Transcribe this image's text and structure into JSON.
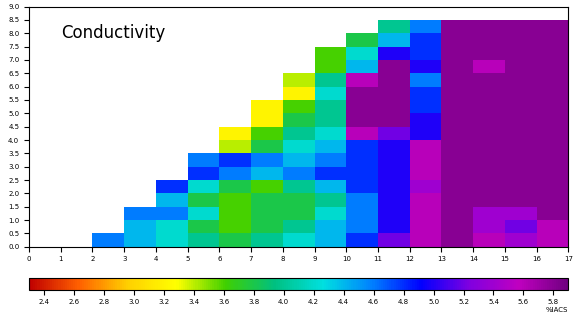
{
  "chart_data": {
    "type": "heatmap",
    "title": "Conductivity",
    "x_edges": [
      0,
      1,
      2,
      3,
      4,
      5,
      6,
      7,
      8,
      9,
      10,
      11,
      12,
      13,
      14,
      15,
      16,
      17
    ],
    "y_edges": [
      0.0,
      0.5,
      1.0,
      1.5,
      2.0,
      2.5,
      3.0,
      3.5,
      4.0,
      4.5,
      5.0,
      5.5,
      6.0,
      6.5,
      7.0,
      7.5,
      8.0,
      8.5
    ],
    "cells": [
      [
        null,
        null,
        4.6,
        4.4,
        4.2,
        4.0,
        3.8,
        4.0,
        4.2,
        4.4,
        4.8,
        5.2,
        5.6,
        5.8,
        5.6,
        5.4,
        5.6
      ],
      [
        null,
        null,
        null,
        4.4,
        4.2,
        3.8,
        3.6,
        3.8,
        4.0,
        4.4,
        4.6,
        5.0,
        5.6,
        5.8,
        5.4,
        5.2,
        5.6
      ],
      [
        null,
        null,
        null,
        4.6,
        4.6,
        4.2,
        3.6,
        3.8,
        3.8,
        4.2,
        4.6,
        5.0,
        5.6,
        5.8,
        5.4,
        5.4,
        5.8
      ],
      [
        null,
        null,
        null,
        null,
        4.4,
        3.8,
        3.6,
        3.8,
        3.8,
        4.0,
        4.6,
        5.0,
        5.6,
        5.8,
        5.8,
        5.8,
        5.8
      ],
      [
        null,
        null,
        null,
        null,
        4.8,
        4.2,
        3.8,
        3.6,
        4.0,
        4.4,
        4.8,
        5.0,
        5.4,
        5.8,
        5.8,
        5.8,
        5.8
      ],
      [
        null,
        null,
        null,
        null,
        null,
        4.8,
        4.6,
        4.4,
        4.6,
        4.8,
        4.8,
        5.0,
        5.6,
        5.8,
        5.8,
        5.8,
        5.8
      ],
      [
        null,
        null,
        null,
        null,
        null,
        4.6,
        4.8,
        4.6,
        4.4,
        4.6,
        4.8,
        5.0,
        5.6,
        5.8,
        5.8,
        5.8,
        5.8
      ],
      [
        null,
        null,
        null,
        null,
        null,
        null,
        3.4,
        3.8,
        4.2,
        4.4,
        4.8,
        5.0,
        5.6,
        5.8,
        5.8,
        5.8,
        5.8
      ],
      [
        null,
        null,
        null,
        null,
        null,
        null,
        3.2,
        3.6,
        4.0,
        4.2,
        5.6,
        5.2,
        5.0,
        5.8,
        5.8,
        5.8,
        5.8
      ],
      [
        null,
        null,
        null,
        null,
        null,
        null,
        null,
        3.2,
        3.8,
        4.0,
        5.8,
        5.8,
        5.0,
        5.8,
        5.8,
        5.8,
        5.8
      ],
      [
        null,
        null,
        null,
        null,
        null,
        null,
        null,
        3.2,
        3.6,
        4.0,
        5.8,
        5.8,
        4.8,
        5.8,
        5.8,
        5.8,
        5.8
      ],
      [
        null,
        null,
        null,
        null,
        null,
        null,
        null,
        null,
        3.2,
        4.2,
        5.8,
        5.8,
        4.8,
        5.8,
        5.8,
        5.8,
        5.8
      ],
      [
        null,
        null,
        null,
        null,
        null,
        null,
        null,
        null,
        3.4,
        4.0,
        5.6,
        5.8,
        4.6,
        5.8,
        5.8,
        5.8,
        5.8
      ],
      [
        null,
        null,
        null,
        null,
        null,
        null,
        null,
        null,
        null,
        3.6,
        4.4,
        5.8,
        5.0,
        5.8,
        5.6,
        5.8,
        5.8
      ],
      [
        null,
        null,
        null,
        null,
        null,
        null,
        null,
        null,
        null,
        3.6,
        4.2,
        5.0,
        4.8,
        5.8,
        5.8,
        5.8,
        5.8
      ],
      [
        null,
        null,
        null,
        null,
        null,
        null,
        null,
        null,
        null,
        null,
        3.8,
        4.4,
        4.8,
        5.8,
        5.8,
        5.8,
        5.8
      ],
      [
        null,
        null,
        null,
        null,
        null,
        null,
        null,
        null,
        null,
        null,
        null,
        4.0,
        4.6,
        5.8,
        5.8,
        5.8,
        5.8
      ]
    ],
    "xlim": [
      0,
      17
    ],
    "xticks": [
      0,
      1,
      2,
      3,
      4,
      5,
      6,
      7,
      8,
      9,
      10,
      11,
      12,
      13,
      14,
      15,
      16,
      17
    ],
    "ylim": [
      0.0,
      9.0
    ],
    "yticks": [
      0.0,
      0.5,
      1.0,
      1.5,
      2.0,
      2.5,
      3.0,
      3.5,
      4.0,
      4.5,
      5.0,
      5.5,
      6.0,
      6.5,
      7.0,
      7.5,
      8.0,
      8.5,
      9.0
    ],
    "colorbar_lim": [
      2.3,
      5.9
    ],
    "colorbar_ticks": [
      2.4,
      2.6,
      2.8,
      3.0,
      3.2,
      3.4,
      3.6,
      3.8,
      4.0,
      4.2,
      4.4,
      4.6,
      4.8,
      5.0,
      5.2,
      5.4,
      5.6,
      5.8
    ],
    "colorbar_label": "%IACS"
  }
}
